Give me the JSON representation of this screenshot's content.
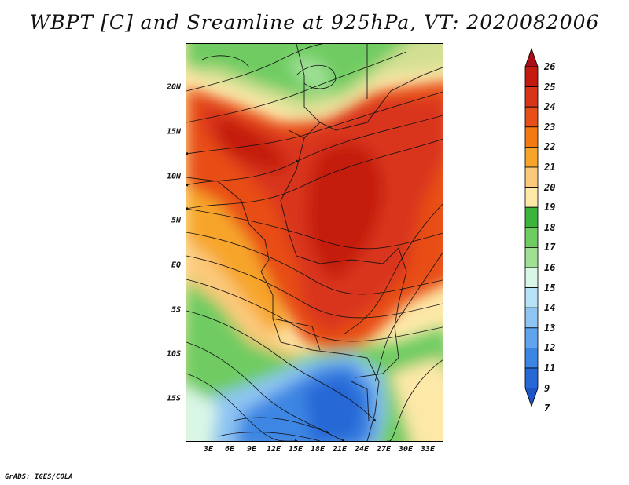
{
  "title": "WBPT [C] and Sreamline at 925hPa, VT: 2020082006",
  "credit": "GrADS: IGES/COLA",
  "lat_labels": [
    "20N",
    "15N",
    "10N",
    "5N",
    "EQ",
    "5S",
    "10S",
    "15S"
  ],
  "lon_labels": [
    "3E",
    "6E",
    "9E",
    "12E",
    "15E",
    "18E",
    "21E",
    "24E",
    "27E",
    "30E",
    "33E"
  ],
  "colorbar": {
    "labels": [
      "26",
      "25",
      "24",
      "23",
      "22",
      "21",
      "20",
      "19",
      "18",
      "17",
      "16",
      "15",
      "14",
      "13",
      "12",
      "11",
      "9",
      "7"
    ],
    "colors": [
      "#a50f15",
      "#c41a10",
      "#d8341a",
      "#e84e18",
      "#f27a10",
      "#f7a52a",
      "#fbc97a",
      "#fde8a8",
      "#3bb43b",
      "#6fcc62",
      "#9fe095",
      "#d9f7e6",
      "#b8e2f7",
      "#8ec5f2",
      "#5fa4ec",
      "#3c86e3",
      "#2568d6",
      "#1e55c4"
    ]
  },
  "map": {
    "region": "Central Africa",
    "field": "wet-bulb potential temperature",
    "level": "925hPa"
  }
}
